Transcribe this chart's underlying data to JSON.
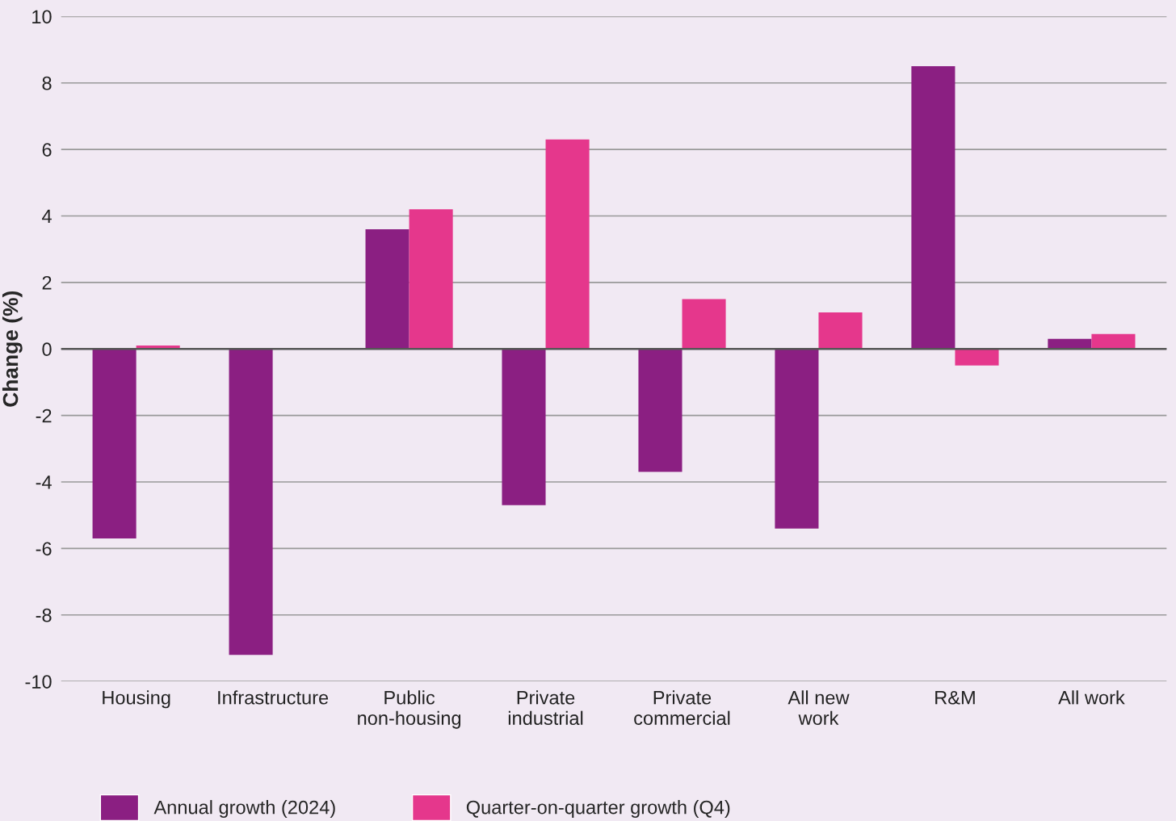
{
  "chart_data": {
    "type": "bar",
    "categories": [
      "Housing",
      "Infrastructure",
      "Public\nnon-housing",
      "Private\nindustrial",
      "Private\ncommercial",
      "All new\nwork",
      "R&M",
      "All work"
    ],
    "series": [
      {
        "name": "Annual growth (2024)",
        "color": "#8b1f82",
        "values": [
          -5.7,
          -9.2,
          3.6,
          -4.7,
          -3.7,
          -5.4,
          8.5,
          0.3
        ]
      },
      {
        "name": "Quarter-on-quarter growth (Q4)",
        "color": "#e5378c",
        "values": [
          0.1,
          null,
          4.2,
          6.3,
          1.5,
          1.1,
          -0.5,
          0.45
        ]
      }
    ],
    "ylabel": "Change (%)",
    "ylim": [
      -10,
      10
    ],
    "yticks": [
      10,
      8,
      6,
      4,
      2,
      0,
      -2,
      -4,
      -6,
      -8,
      -10
    ],
    "ref_lines": [
      {
        "axis": "y",
        "value": 0,
        "color": "#555555"
      }
    ],
    "grid": "y",
    "legend": "bottom left"
  }
}
